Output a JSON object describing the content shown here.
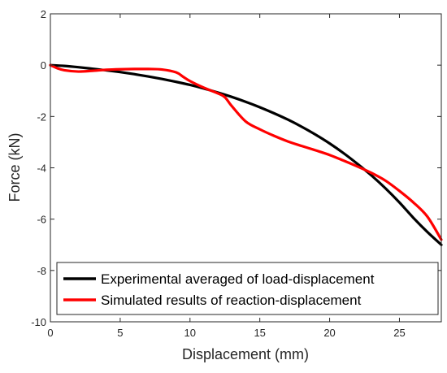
{
  "chart_data": {
    "type": "line",
    "title": "",
    "xlabel": "Displacement (mm)",
    "ylabel": "Force (kN)",
    "xlim": [
      0,
      28
    ],
    "ylim": [
      -10,
      2
    ],
    "xticks": [
      0,
      5,
      10,
      15,
      20,
      25
    ],
    "yticks": [
      2,
      0,
      -2,
      -4,
      -6,
      -8,
      -10
    ],
    "grid": false,
    "legend_position": "bottom-right",
    "series": [
      {
        "name": "Experimental averaged of load-displacement",
        "color": "#000000",
        "x": [
          0,
          1,
          2,
          3,
          4,
          5,
          6,
          7,
          8,
          9,
          10,
          11,
          12,
          13,
          14,
          15,
          16,
          17,
          18,
          19,
          20,
          21,
          22,
          23,
          24,
          25,
          26,
          27,
          28
        ],
        "y": [
          0,
          -0.03,
          -0.08,
          -0.14,
          -0.2,
          -0.27,
          -0.35,
          -0.44,
          -0.54,
          -0.65,
          -0.77,
          -0.91,
          -1.07,
          -1.24,
          -1.43,
          -1.64,
          -1.87,
          -2.12,
          -2.4,
          -2.71,
          -3.05,
          -3.43,
          -3.85,
          -4.3,
          -4.8,
          -5.35,
          -5.95,
          -6.5,
          -7.0
        ]
      },
      {
        "name": "Simulated results of reaction-displacement",
        "color": "#ff0000",
        "x": [
          0,
          0.5,
          1,
          2,
          3,
          4,
          5,
          6,
          7,
          8,
          9,
          9.5,
          10,
          11,
          12,
          12.5,
          13,
          14,
          15,
          16,
          17,
          18,
          19,
          20,
          21,
          22,
          23,
          24,
          25,
          26,
          27,
          28
        ],
        "y": [
          0,
          -0.12,
          -0.2,
          -0.25,
          -0.22,
          -0.18,
          -0.16,
          -0.15,
          -0.15,
          -0.17,
          -0.28,
          -0.45,
          -0.62,
          -0.88,
          -1.1,
          -1.25,
          -1.6,
          -2.2,
          -2.5,
          -2.75,
          -2.97,
          -3.15,
          -3.32,
          -3.5,
          -3.72,
          -3.95,
          -4.2,
          -4.5,
          -4.9,
          -5.35,
          -5.9,
          -6.8
        ]
      }
    ]
  }
}
